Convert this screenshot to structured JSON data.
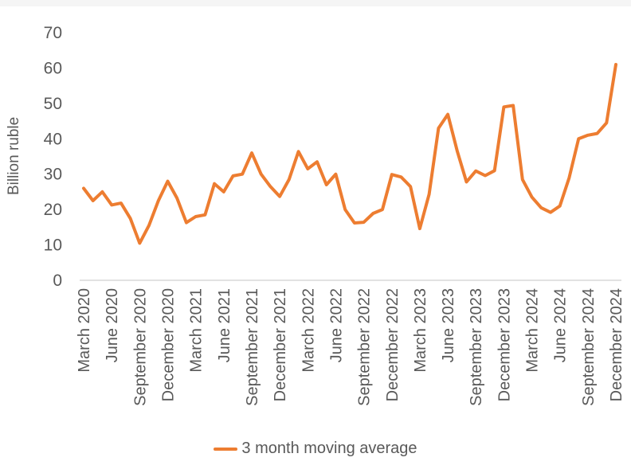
{
  "chart_data": {
    "type": "line",
    "title": "",
    "xlabel": "",
    "ylabel": "Billion ruble",
    "ylim": [
      0,
      70
    ],
    "y_ticks": [
      0,
      10,
      20,
      30,
      40,
      50,
      60,
      70
    ],
    "grid": "none",
    "legend_position": "bottom",
    "axis_line_color": "#D9D9D9",
    "text_color": "#595959",
    "categories": [
      "March 2020",
      "April 2020",
      "May 2020",
      "June 2020",
      "July 2020",
      "August 2020",
      "September 2020",
      "October 2020",
      "November 2020",
      "December 2020",
      "January 2021",
      "February 2021",
      "March 2021",
      "April 2021",
      "May 2021",
      "June 2021",
      "July 2021",
      "August 2021",
      "September 2021",
      "October 2021",
      "November 2021",
      "December 2021",
      "January 2022",
      "February 2022",
      "March 2022",
      "April 2022",
      "May 2022",
      "June 2022",
      "July 2022",
      "August 2022",
      "September 2022",
      "October 2022",
      "November 2022",
      "December 2022",
      "January 2023",
      "February 2023",
      "March 2023",
      "April 2023",
      "May 2023",
      "June 2023",
      "July 2023",
      "August 2023",
      "September 2023",
      "October 2023",
      "November 2023",
      "December 2023",
      "January 2024",
      "February 2024",
      "March 2024",
      "April 2024",
      "May 2024",
      "June 2024",
      "July 2024",
      "August 2024",
      "September 2024",
      "October 2024",
      "November 2024",
      "December 2024"
    ],
    "x_tick_labels": [
      "March 2020",
      "June 2020",
      "September 2020",
      "December 2020",
      "March 2021",
      "June 2021",
      "September 2021",
      "December 2021",
      "March 2022",
      "June 2022",
      "September 2022",
      "December 2022",
      "March 2023",
      "June 2023",
      "September 2023",
      "December 2023",
      "March 2024",
      "June 2024",
      "September 2024",
      "December 2024"
    ],
    "series": [
      {
        "name": "3 month moving average",
        "color": "#ED7D31",
        "values": [
          26,
          22.5,
          25,
          21.3,
          21.8,
          17.5,
          10.5,
          15.5,
          22.5,
          28,
          23.2,
          16.3,
          18,
          18.5,
          27.3,
          25,
          29.5,
          30,
          36,
          30,
          26.5,
          23.7,
          28.5,
          36.4,
          31.5,
          33.5,
          27,
          30,
          20,
          16.2,
          16.4,
          18.9,
          20,
          29.9,
          29.2,
          26.5,
          14.6,
          24.3,
          43,
          46.9,
          36.6,
          27.8,
          30.9,
          29.6,
          31,
          49,
          49.4,
          28.5,
          23.5,
          20.5,
          19.2,
          21,
          29,
          40,
          41,
          41.5,
          44.5,
          61
        ]
      }
    ]
  }
}
